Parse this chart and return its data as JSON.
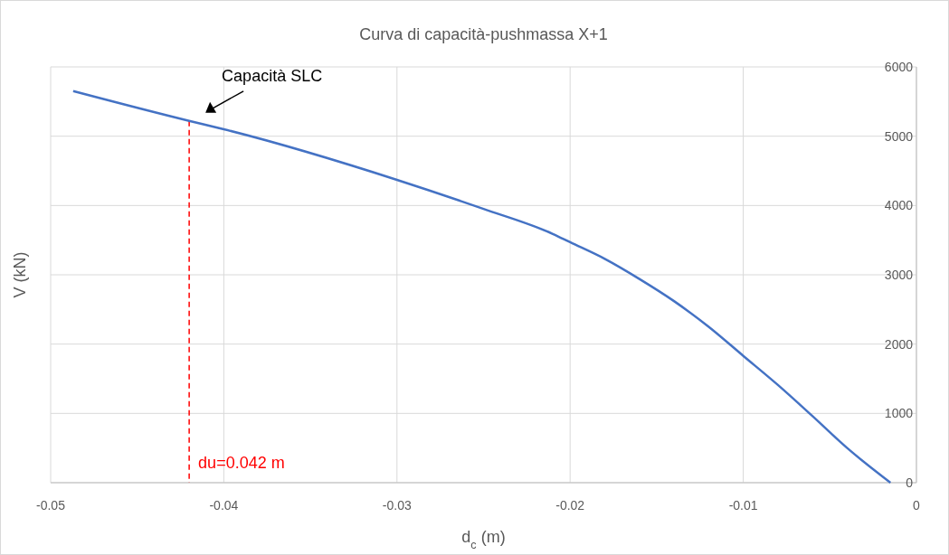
{
  "chart_data": {
    "type": "line",
    "title": "Curva di capacità-pushmassa X+1",
    "xlabel": "d$_{c}$ (m)",
    "ylabel": "V (kN)",
    "series": [
      {
        "color": "#4472c4",
        "x": [
          -0.0487,
          -0.042,
          -0.04,
          -0.03,
          -0.025,
          -0.021,
          -0.02,
          -0.018,
          -0.016,
          -0.014,
          -0.012,
          -0.01,
          -0.008,
          -0.006,
          -0.004,
          -0.0015
        ],
        "values": [
          5650,
          5220,
          5100,
          4370,
          3950,
          3590,
          3470,
          3230,
          2940,
          2620,
          2250,
          1830,
          1410,
          960,
          500,
          0
        ]
      }
    ],
    "xlim": [
      -0.05,
      0
    ],
    "xticks": [
      -0.05,
      -0.04,
      -0.03,
      -0.02,
      -0.01,
      0
    ],
    "ylim": [
      0,
      6000
    ],
    "yticks": [
      0,
      1000,
      2000,
      3000,
      4000,
      5000,
      6000
    ],
    "grid": true,
    "marker": "none",
    "line_style": "solid",
    "ref_lines": [
      {
        "axis": "x",
        "value": -0.042,
        "color": "#ff0000",
        "line_style": "dashed"
      }
    ],
    "annotations": [
      {
        "text": "Capacità SLC",
        "x": -0.042,
        "y": 5220
      },
      "du=0.042 m"
    ]
  }
}
